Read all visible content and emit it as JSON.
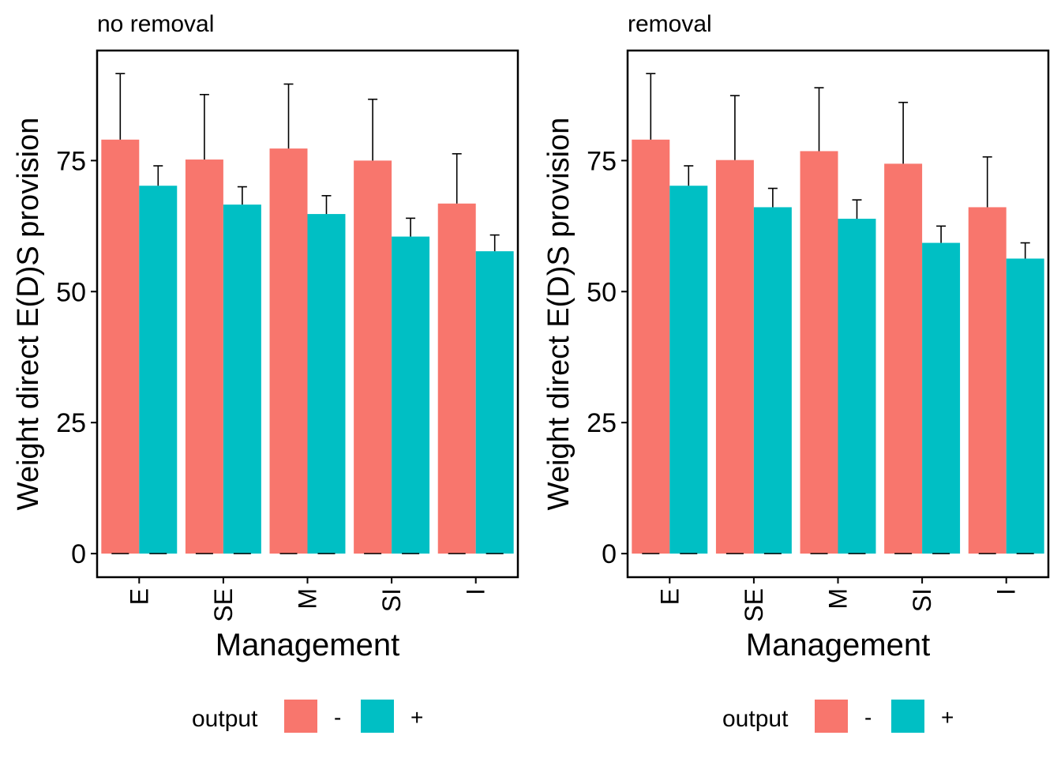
{
  "colors": {
    "minus": "#F8766D",
    "plus": "#00BFC4"
  },
  "chart_data": [
    {
      "type": "bar",
      "title": "no removal",
      "xlabel": "Management",
      "ylabel": "Weight direct E(D)S provision",
      "categories": [
        "E",
        "SE",
        "M",
        "SI",
        "I"
      ],
      "yticks": [
        "0",
        "25",
        "50",
        "75"
      ],
      "ylim": [
        -4.5,
        96
      ],
      "grid": false,
      "legend": {
        "title": "output",
        "placement": "bottom",
        "entries": [
          "-",
          "+"
        ]
      },
      "series": [
        {
          "name": "-",
          "values": [
            79,
            75.2,
            77.3,
            75,
            66.8
          ],
          "error_upper": [
            91.6,
            87.6,
            89.6,
            86.7,
            76.3
          ]
        },
        {
          "name": "+",
          "values": [
            70.2,
            66.6,
            64.8,
            60.5,
            57.7
          ],
          "error_upper": [
            74,
            70,
            68.3,
            64,
            60.8
          ]
        }
      ]
    },
    {
      "type": "bar",
      "title": "removal",
      "xlabel": "Management",
      "ylabel": "Weight direct E(D)S provision",
      "categories": [
        "E",
        "SE",
        "M",
        "SI",
        "I"
      ],
      "yticks": [
        "0",
        "25",
        "50",
        "75"
      ],
      "ylim": [
        -4.5,
        96
      ],
      "grid": false,
      "legend": {
        "title": "output",
        "placement": "bottom",
        "entries": [
          "-",
          "+"
        ]
      },
      "series": [
        {
          "name": "-",
          "values": [
            79,
            75.1,
            76.8,
            74.4,
            66.1
          ],
          "error_upper": [
            91.6,
            87.4,
            88.9,
            86.1,
            75.7
          ]
        },
        {
          "name": "+",
          "values": [
            70.2,
            66.1,
            63.9,
            59.3,
            56.3
          ],
          "error_upper": [
            74,
            69.7,
            67.5,
            62.5,
            59.3
          ]
        }
      ]
    }
  ]
}
